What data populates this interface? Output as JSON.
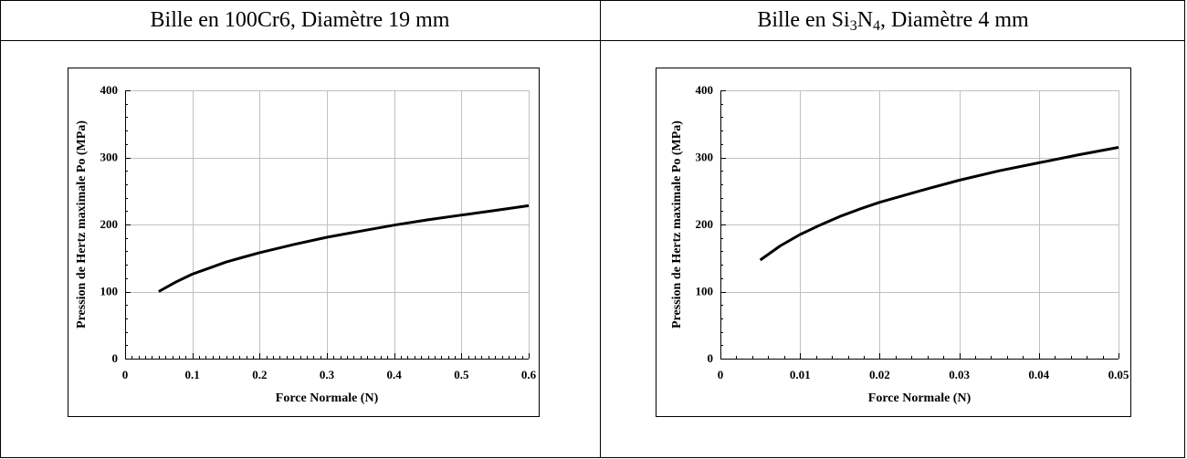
{
  "panels": [
    {
      "title_pre": "Bille en 100Cr6, Diamètre 19 mm",
      "title_sub1": "",
      "title_mid": "",
      "title_sub2": "",
      "title_post": ""
    },
    {
      "title_pre": "Bille en Si",
      "title_sub1": "3",
      "title_mid": "N",
      "title_sub2": "4",
      "title_post": ", Diamètre 4 mm"
    }
  ],
  "chart_data": [
    {
      "type": "line",
      "xlabel": "Force Normale (N)",
      "ylabel": "Pression de Hertz maximale Po (MPa)",
      "xlim": [
        0,
        0.6
      ],
      "ylim": [
        0,
        400
      ],
      "xticks": [
        0,
        0.1,
        0.2,
        0.3,
        0.4,
        0.5,
        0.6
      ],
      "xtick_labels": [
        "0",
        "0.1",
        "0.2",
        "0.3",
        "0.4",
        "0.5",
        "0.6"
      ],
      "yticks": [
        0,
        100,
        200,
        300,
        400
      ],
      "ytick_labels": [
        "0",
        "100",
        "200",
        "300",
        "400"
      ],
      "grid": true,
      "series": [
        {
          "color": "#000000",
          "x": [
            0.05,
            0.075,
            0.1,
            0.125,
            0.15,
            0.175,
            0.2,
            0.25,
            0.3,
            0.35,
            0.4,
            0.45,
            0.5,
            0.55,
            0.6
          ],
          "y": [
            100,
            114,
            126,
            135,
            144,
            151,
            158,
            170,
            181,
            190,
            199,
            207,
            214,
            221,
            228
          ]
        }
      ]
    },
    {
      "type": "line",
      "xlabel": "Force Normale (N)",
      "ylabel": "Pression de Hertz maximale Po (MPa)",
      "xlim": [
        0,
        0.05
      ],
      "ylim": [
        0,
        400
      ],
      "xticks": [
        0,
        0.01,
        0.02,
        0.03,
        0.04,
        0.05
      ],
      "xtick_labels": [
        "0",
        "0.01",
        "0.02",
        "0.03",
        "0.04",
        "0.05"
      ],
      "yticks": [
        0,
        100,
        200,
        300,
        400
      ],
      "ytick_labels": [
        "0",
        "100",
        "200",
        "300",
        "400"
      ],
      "grid": true,
      "series": [
        {
          "color": "#000000",
          "x": [
            0.005,
            0.0075,
            0.01,
            0.0125,
            0.015,
            0.0175,
            0.02,
            0.025,
            0.03,
            0.035,
            0.04,
            0.045,
            0.05
          ],
          "y": [
            147,
            168,
            185,
            199,
            212,
            223,
            233,
            250,
            266,
            280,
            292,
            304,
            315
          ]
        }
      ]
    }
  ]
}
